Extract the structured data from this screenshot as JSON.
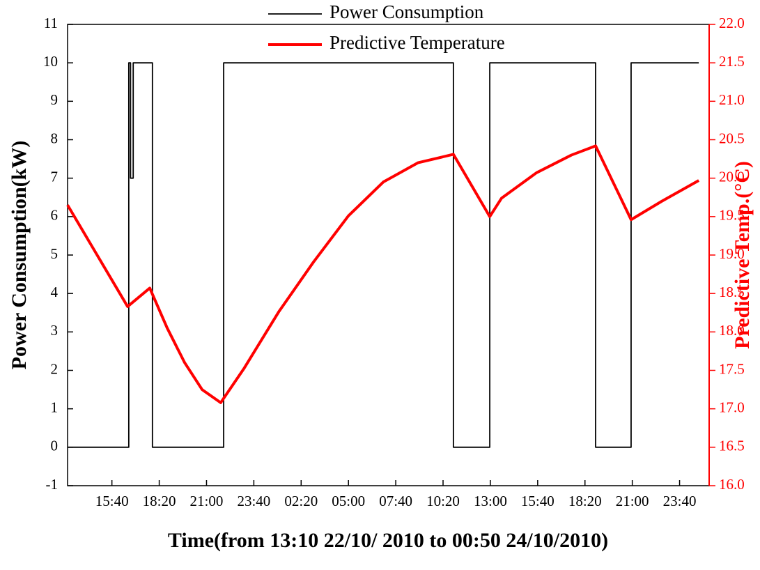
{
  "chart_data": {
    "type": "line",
    "legend": [],
    "x_label": "Time(from 13:10  22/10/ 2010 to 00:50 24/10/2010)",
    "y_label": "Power Consumption(kW)",
    "y2_label": "Predictive Temp.(°C)",
    "xlim": [
      0,
      2170
    ],
    "xticks": [
      {
        "value": 150,
        "label": "15:40"
      },
      {
        "value": 310,
        "label": "18:20"
      },
      {
        "value": 470,
        "label": "21:00"
      },
      {
        "value": 630,
        "label": "23:40"
      },
      {
        "value": 790,
        "label": "02:20"
      },
      {
        "value": 950,
        "label": "05:00"
      },
      {
        "value": 1110,
        "label": "07:40"
      },
      {
        "value": 1270,
        "label": "10:20"
      },
      {
        "value": 1430,
        "label": "13:00"
      },
      {
        "value": 1590,
        "label": "15:40"
      },
      {
        "value": 1750,
        "label": "18:20"
      },
      {
        "value": 1910,
        "label": "21:00"
      },
      {
        "value": 2070,
        "label": "23:40"
      }
    ],
    "ylim": [
      -1,
      11
    ],
    "yticks": [
      -1,
      0,
      1,
      2,
      3,
      4,
      5,
      6,
      7,
      8,
      9,
      10,
      11
    ],
    "y2lim": [
      16,
      22
    ],
    "y2ticks": [
      {
        "value": 16,
        "label": "16.0"
      },
      16.5,
      {
        "value": 17,
        "label": "17.0"
      },
      17.5,
      {
        "value": 18,
        "label": "18.0"
      },
      18.5,
      {
        "value": 19,
        "label": "19.0"
      },
      19.5,
      {
        "value": 20,
        "label": "20.0"
      },
      20.5,
      {
        "value": 21,
        "label": "21.0"
      },
      21.5,
      {
        "value": 22,
        "label": "22.0"
      }
    ],
    "series": [
      {
        "name": "Power Consumption",
        "color": "#000000",
        "step": true,
        "x": [
          0,
          207,
          207,
          213,
          213,
          222,
          222,
          287,
          287,
          528,
          528,
          1305,
          1305,
          1428,
          1428,
          1786,
          1786,
          1906,
          1906,
          2135
        ],
        "values": [
          0,
          0,
          10,
          10,
          7,
          7,
          10,
          10,
          0,
          0,
          10,
          10,
          0,
          0,
          10,
          10,
          0,
          0,
          10,
          10
        ]
      },
      {
        "name": "Predictive Temperature",
        "color": "#ff0000",
        "axis": "y2",
        "x": [
          0,
          203,
          278,
          337,
          396,
          455,
          518,
          596,
          714,
          832,
          950,
          1068,
          1185,
          1305,
          1428,
          1468,
          1586,
          1704,
          1786,
          1906,
          2010,
          2135
        ],
        "values": [
          19.65,
          18.33,
          18.57,
          18.05,
          17.6,
          17.25,
          17.08,
          17.52,
          18.26,
          18.91,
          19.51,
          19.95,
          20.2,
          20.31,
          19.5,
          19.74,
          20.07,
          20.3,
          20.42,
          19.46,
          19.7,
          19.97
        ]
      }
    ]
  }
}
